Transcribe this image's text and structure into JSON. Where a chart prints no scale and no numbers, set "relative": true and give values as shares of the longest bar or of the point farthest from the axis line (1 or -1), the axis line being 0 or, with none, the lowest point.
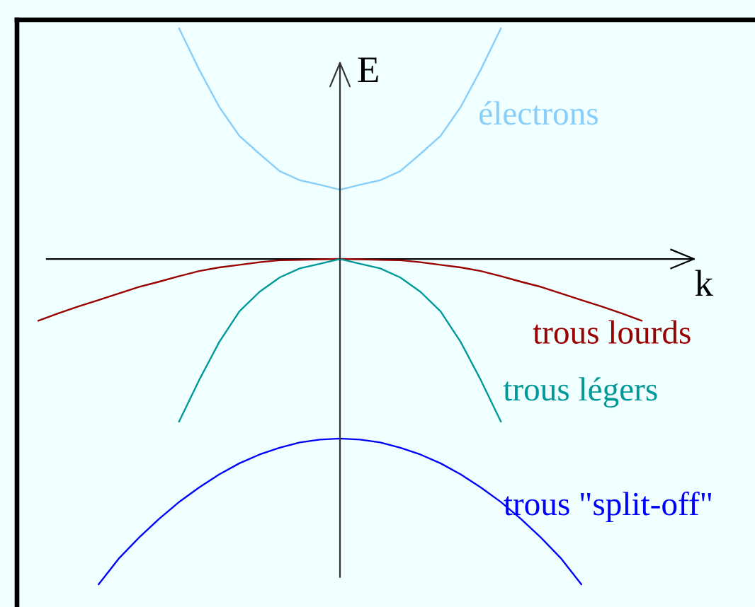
{
  "chart_data": {
    "type": "line",
    "relative": true,
    "xlabel": "k",
    "ylabel": "E",
    "categories": [
      null,
      null,
      null,
      null,
      null,
      null,
      null,
      null,
      null,
      null,
      null,
      null,
      null,
      null,
      null,
      null,
      null,
      null,
      null,
      null,
      null,
      null,
      null,
      null,
      null,
      null,
      null,
      null,
      null,
      null,
      null
    ],
    "series": [
      {
        "name": "électrons",
        "color": "#87cefa",
        "values": [
          null,
          null,
          null,
          null,
          null,
          null,
          null,
          0.709,
          0.582,
          0.467,
          0.378,
          0.323,
          0.27,
          0.242,
          0.228,
          0.213,
          0.228,
          0.242,
          0.27,
          0.323,
          0.378,
          0.467,
          0.582,
          0.709,
          null,
          null,
          null,
          null,
          null,
          null,
          null
        ]
      },
      {
        "name": "trous lourds",
        "color": "#990000",
        "values": [
          -0.19,
          -0.167,
          -0.146,
          -0.126,
          -0.106,
          -0.086,
          -0.07,
          -0.053,
          -0.037,
          -0.026,
          -0.018,
          -0.01,
          -0.004,
          -0.003,
          -0.001,
          0,
          -0.001,
          -0.003,
          -0.004,
          -0.01,
          -0.018,
          -0.026,
          -0.037,
          -0.053,
          -0.07,
          -0.086,
          -0.106,
          -0.126,
          -0.146,
          -0.167,
          -0.19
        ]
      },
      {
        "name": "trous légers",
        "color": "#009999",
        "values": [
          null,
          null,
          null,
          null,
          null,
          null,
          null,
          -0.5,
          -0.372,
          -0.255,
          -0.161,
          -0.101,
          -0.057,
          -0.029,
          -0.015,
          0,
          -0.015,
          -0.029,
          -0.057,
          -0.101,
          -0.161,
          -0.255,
          -0.372,
          -0.5,
          null,
          null,
          null,
          null,
          null,
          null,
          null
        ]
      },
      {
        "name": "trous \"split-off\"",
        "color": "#0000ff",
        "values": [
          null,
          null,
          null,
          -1,
          -0.921,
          -0.857,
          -0.799,
          -0.747,
          -0.702,
          -0.662,
          -0.628,
          -0.601,
          -0.58,
          -0.564,
          -0.555,
          -0.552,
          -0.555,
          -0.564,
          -0.58,
          -0.601,
          -0.628,
          -0.662,
          -0.702,
          -0.747,
          -0.799,
          -0.857,
          -0.921,
          -1,
          null,
          null,
          null
        ]
      }
    ]
  }
}
